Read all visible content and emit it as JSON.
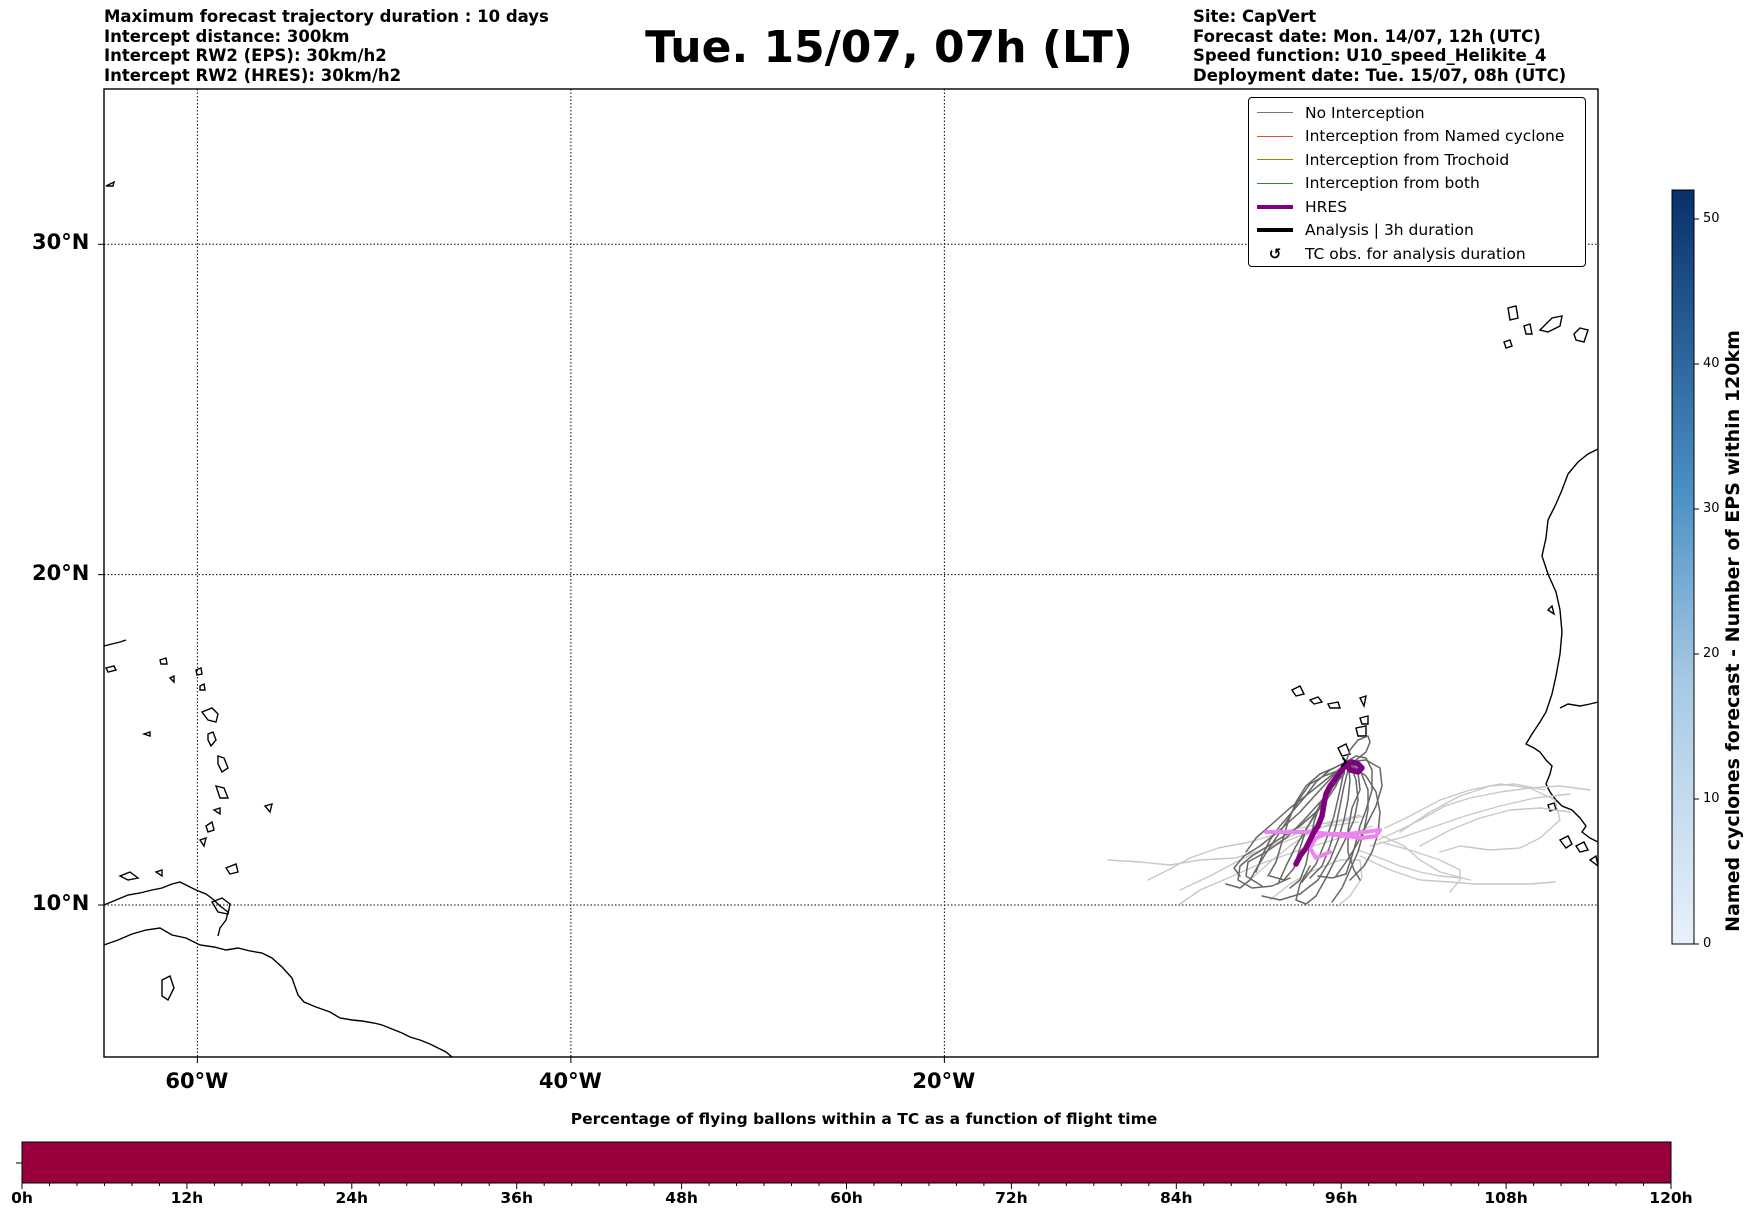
{
  "header": {
    "left_lines": [
      "Maximum forecast trajectory duration : 10 days",
      "Intercept distance: 300km",
      "Intercept RW2 (EPS):  30km/h2",
      "Intercept RW2 (HRES): 30km/h2"
    ],
    "right_lines": [
      "Site: CapVert",
      "Forecast date: Mon. 14/07, 12h (UTC)",
      "Speed function: U10_speed_Helikite_4",
      "Deployment date: Tue. 15/07, 08h (UTC)"
    ],
    "title": "Tue. 15/07, 07h (LT)"
  },
  "map": {
    "lon_range": [
      -65,
      15
    ],
    "lat_range": [
      5.4,
      34.7
    ],
    "lat_ticks": [
      {
        "value": 30,
        "label": "30°N"
      },
      {
        "value": 20,
        "label": "20°N"
      },
      {
        "value": 10,
        "label": "10°N"
      }
    ],
    "lon_ticks": [
      {
        "value": -60,
        "label": "60°W"
      },
      {
        "value": -40,
        "label": "40°W"
      },
      {
        "value": -20,
        "label": "20°W"
      }
    ],
    "gridlines": "dotted",
    "colors": {
      "no_interception": "#666666",
      "named_cyclone": "#e2522a",
      "trochoid": "#8c8c00",
      "both": "#2e8b2e",
      "hres": "#800080",
      "analysis": "#000000",
      "hres_light": "#ee82ee"
    }
  },
  "legend": {
    "placement": "top-right",
    "items": [
      {
        "label": "No Interception",
        "type": "line",
        "color": "#777777",
        "width": 1.2
      },
      {
        "label": "Interception from Named cyclone",
        "type": "line",
        "color": "#e2522a",
        "width": 1.2
      },
      {
        "label": "Interception from Trochoid",
        "type": "line",
        "color": "#8c8c00",
        "width": 1.2
      },
      {
        "label": "Interception from both",
        "type": "line",
        "color": "#2e8b2e",
        "width": 1.2
      },
      {
        "label": "HRES",
        "type": "line",
        "color": "#800080",
        "width": 4
      },
      {
        "label": "Analysis | 3h duration",
        "type": "line",
        "color": "#000000",
        "width": 4
      },
      {
        "label": "TC obs. for analysis duration",
        "type": "marker",
        "icon": "cyclone-icon",
        "glyph": "↺"
      }
    ]
  },
  "colorbar": {
    "label": "Named cyclones forecast - Number of EPS within 120km",
    "min": 0,
    "max": 52,
    "ticks": [
      0,
      10,
      20,
      30,
      40,
      50
    ],
    "color_low": "#e8f1fa",
    "color_high": "#08306b"
  },
  "flight_bar": {
    "title": "Percentage of flying ballons within a TC as a function of flight time",
    "color": "#99003d",
    "ticks": [
      "0h",
      "12h",
      "24h",
      "36h",
      "48h",
      "60h",
      "72h",
      "84h",
      "96h",
      "108h",
      "120h"
    ]
  }
}
